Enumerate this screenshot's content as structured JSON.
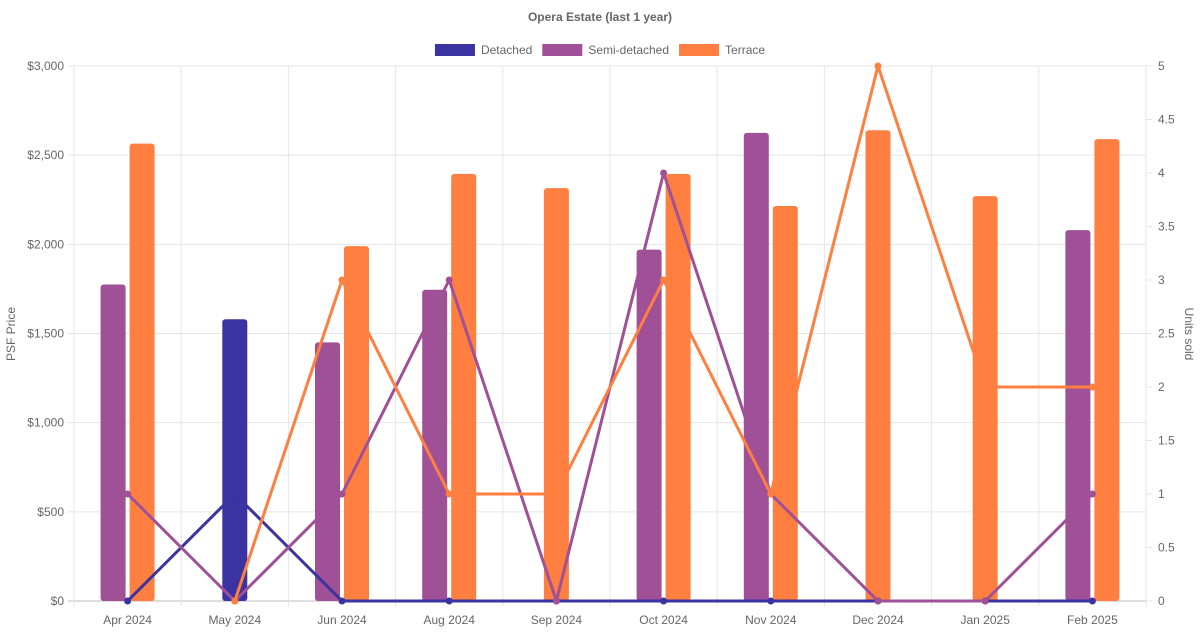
{
  "chart_data": {
    "type": "bar",
    "title": "Opera Estate (last 1 year)",
    "categories": [
      "Apr 2024",
      "May 2024",
      "Jun 2024",
      "Aug 2024",
      "Sep 2024",
      "Oct 2024",
      "Nov 2024",
      "Dec 2024",
      "Jan 2025",
      "Feb 2025"
    ],
    "bar_series": [
      {
        "name": "Detached",
        "color": "#3a33a1",
        "values": [
          null,
          1580,
          null,
          null,
          null,
          null,
          null,
          null,
          null,
          null
        ]
      },
      {
        "name": "Semi-detached",
        "color": "#9f5096",
        "values": [
          1775,
          null,
          1450,
          1745,
          null,
          1970,
          2625,
          null,
          null,
          2080
        ]
      },
      {
        "name": "Terrace",
        "color": "#ff7f40",
        "values": [
          2565,
          null,
          1990,
          2395,
          2315,
          2395,
          2215,
          2640,
          2270,
          2590
        ]
      }
    ],
    "line_series": [
      {
        "name": "Detached",
        "color": "#3a33a1",
        "values": [
          0,
          1,
          0,
          0,
          0,
          0,
          0,
          0,
          0,
          0
        ]
      },
      {
        "name": "Semi-detached",
        "color": "#9f5096",
        "values": [
          1,
          0,
          1,
          3,
          0,
          4,
          1,
          0,
          0,
          1
        ]
      },
      {
        "name": "Terrace",
        "color": "#ff7f40",
        "values": [
          null,
          0,
          3,
          1,
          1,
          3,
          1,
          5,
          2,
          2
        ]
      }
    ],
    "legend": {
      "position": "top-center",
      "items": [
        "Detached",
        "Semi-detached",
        "Terrace"
      ]
    },
    "y_left": {
      "label": "PSF Price",
      "range": [
        0,
        3000
      ],
      "ticks": [
        "$0",
        "$500",
        "$1,000",
        "$1,500",
        "$2,000",
        "$2,500",
        "$3,000"
      ]
    },
    "y_right": {
      "label": "Units sold",
      "range": [
        0,
        5
      ],
      "ticks": [
        "0",
        "0.5",
        "1",
        "1.5",
        "2",
        "2.5",
        "3",
        "3.5",
        "4",
        "4.5",
        "5"
      ]
    },
    "grid": true
  }
}
